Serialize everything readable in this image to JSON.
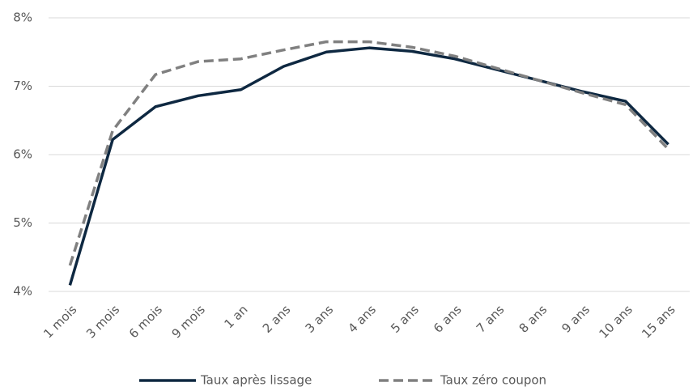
{
  "chart_data": {
    "type": "line",
    "categories": [
      "1 mois",
      "3 mois",
      "6 mois",
      "9 mois",
      "1 an",
      "2 ans",
      "3 ans",
      "4 ans",
      "5 ans",
      "6 ans",
      "7 ans",
      "8 ans",
      "9 ans",
      "10 ans",
      "15 ans"
    ],
    "series": [
      {
        "name": "Taux après lissage",
        "color": "#0e2841",
        "dash": false,
        "values": [
          4.09,
          6.22,
          6.7,
          6.86,
          6.95,
          7.29,
          7.5,
          7.56,
          7.51,
          7.4,
          7.24,
          7.08,
          6.92,
          6.78,
          6.15
        ]
      },
      {
        "name": "Taux zéro coupon",
        "color": "#808080",
        "dash": true,
        "values": [
          4.38,
          6.35,
          7.17,
          7.36,
          7.4,
          7.53,
          7.65,
          7.65,
          7.57,
          7.44,
          7.26,
          7.08,
          6.9,
          6.73,
          6.08
        ]
      }
    ],
    "ylim": [
      4,
      8
    ],
    "yticks": [
      {
        "value": 4,
        "label": "4%"
      },
      {
        "value": 5,
        "label": "5%"
      },
      {
        "value": 6,
        "label": "6%"
      },
      {
        "value": 7,
        "label": "7%"
      },
      {
        "value": 8,
        "label": "8%"
      }
    ],
    "grid": true,
    "legend": "bottom"
  }
}
